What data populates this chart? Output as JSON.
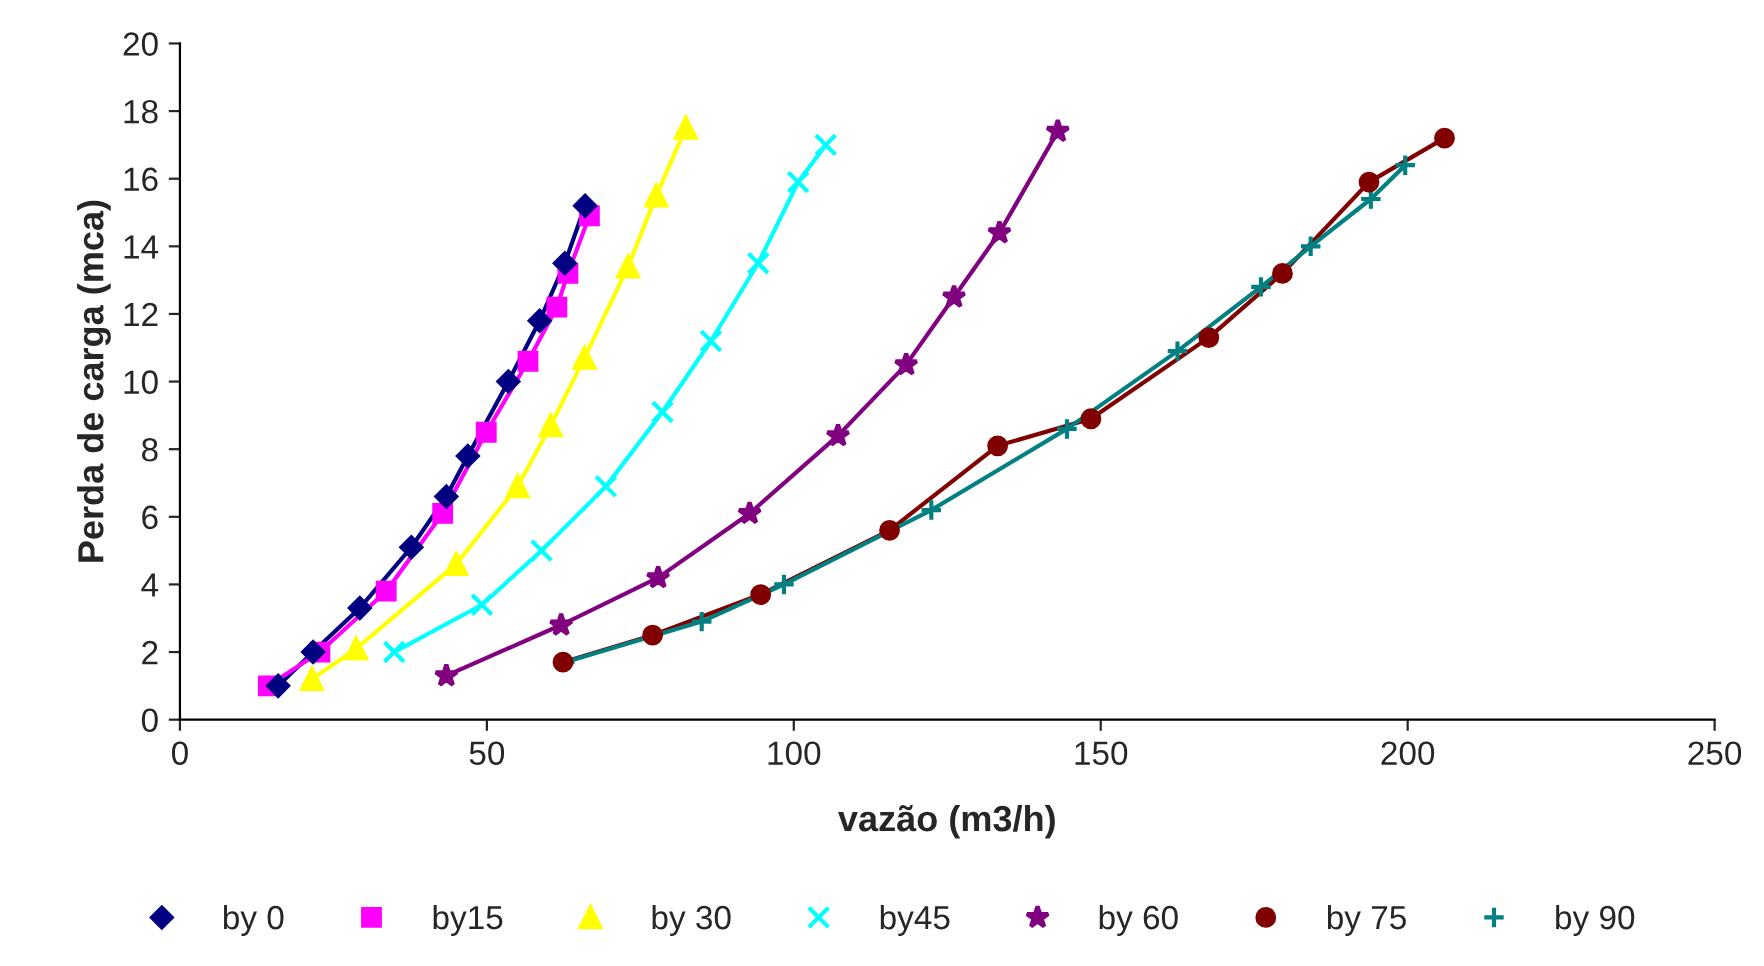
{
  "chart_data": {
    "type": "line",
    "xlabel": "vazão (m3/h)",
    "ylabel": "Perda de carga (mca)",
    "xlim": [
      0,
      250
    ],
    "xticks": [
      0,
      50,
      100,
      150,
      200,
      250
    ],
    "ylim": [
      0,
      20
    ],
    "yticks": [
      0,
      2,
      4,
      6,
      8,
      10,
      12,
      14,
      16,
      18,
      20
    ],
    "grid": false,
    "legend": "bottom",
    "line_style": "solid",
    "series": [
      {
        "name": "by 0",
        "color": "#000080",
        "marker": "diamond",
        "x": [
          16.0,
          21.7,
          29.3,
          37.7,
          43.4,
          46.9,
          53.5,
          58.6,
          62.7,
          66.0
        ],
        "values": [
          1.0,
          2.0,
          3.3,
          5.1,
          6.6,
          7.8,
          10.0,
          11.8,
          13.5,
          15.2
        ]
      },
      {
        "name": "by15",
        "color": "#ff00ff",
        "marker": "square",
        "x": [
          14.4,
          22.8,
          33.6,
          42.8,
          49.9,
          56.7,
          61.4,
          63.2,
          66.7
        ],
        "values": [
          1.0,
          2.0,
          3.8,
          6.1,
          8.5,
          10.6,
          12.2,
          13.2,
          14.9
        ]
      },
      {
        "name": "by 30",
        "color": "#ffff00",
        "marker": "triangle",
        "x": [
          21.5,
          28.7,
          45.0,
          55.0,
          60.4,
          65.9,
          73.0,
          77.6,
          82.4
        ],
        "values": [
          1.2,
          2.1,
          4.6,
          6.9,
          8.7,
          10.7,
          13.4,
          15.5,
          17.5
        ]
      },
      {
        "name": "by45",
        "color": "#00ffff",
        "marker": "cross",
        "x": [
          34.9,
          49.2,
          58.9,
          69.4,
          78.6,
          86.5,
          94.2,
          100.7,
          105.2
        ],
        "values": [
          2.0,
          3.4,
          5.0,
          6.9,
          9.1,
          11.2,
          13.5,
          15.9,
          17.0
        ]
      },
      {
        "name": "by 60",
        "color": "#800080",
        "marker": "star",
        "x": [
          43.4,
          62.1,
          77.9,
          92.8,
          107.2,
          118.3,
          126.1,
          133.5,
          143.0
        ],
        "values": [
          1.3,
          2.8,
          4.2,
          6.1,
          8.4,
          10.5,
          12.5,
          14.4,
          17.4
        ]
      },
      {
        "name": "by 75",
        "color": "#800000",
        "marker": "circle",
        "x": [
          62.4,
          77.0,
          94.6,
          115.6,
          133.2,
          148.4,
          167.6,
          179.6,
          193.7,
          206.0
        ],
        "values": [
          1.7,
          2.5,
          3.7,
          5.6,
          8.1,
          8.9,
          11.3,
          13.2,
          15.9,
          17.2
        ]
      },
      {
        "name": "by 90",
        "color": "#008080",
        "marker": "plus",
        "x": [
          62.7,
          85.0,
          98.4,
          122.4,
          144.5,
          162.5,
          176.1,
          184.2,
          194.0,
          199.6
        ],
        "values": [
          1.7,
          2.9,
          4.0,
          6.2,
          8.6,
          10.9,
          12.8,
          14.0,
          15.4,
          16.4
        ]
      }
    ]
  }
}
